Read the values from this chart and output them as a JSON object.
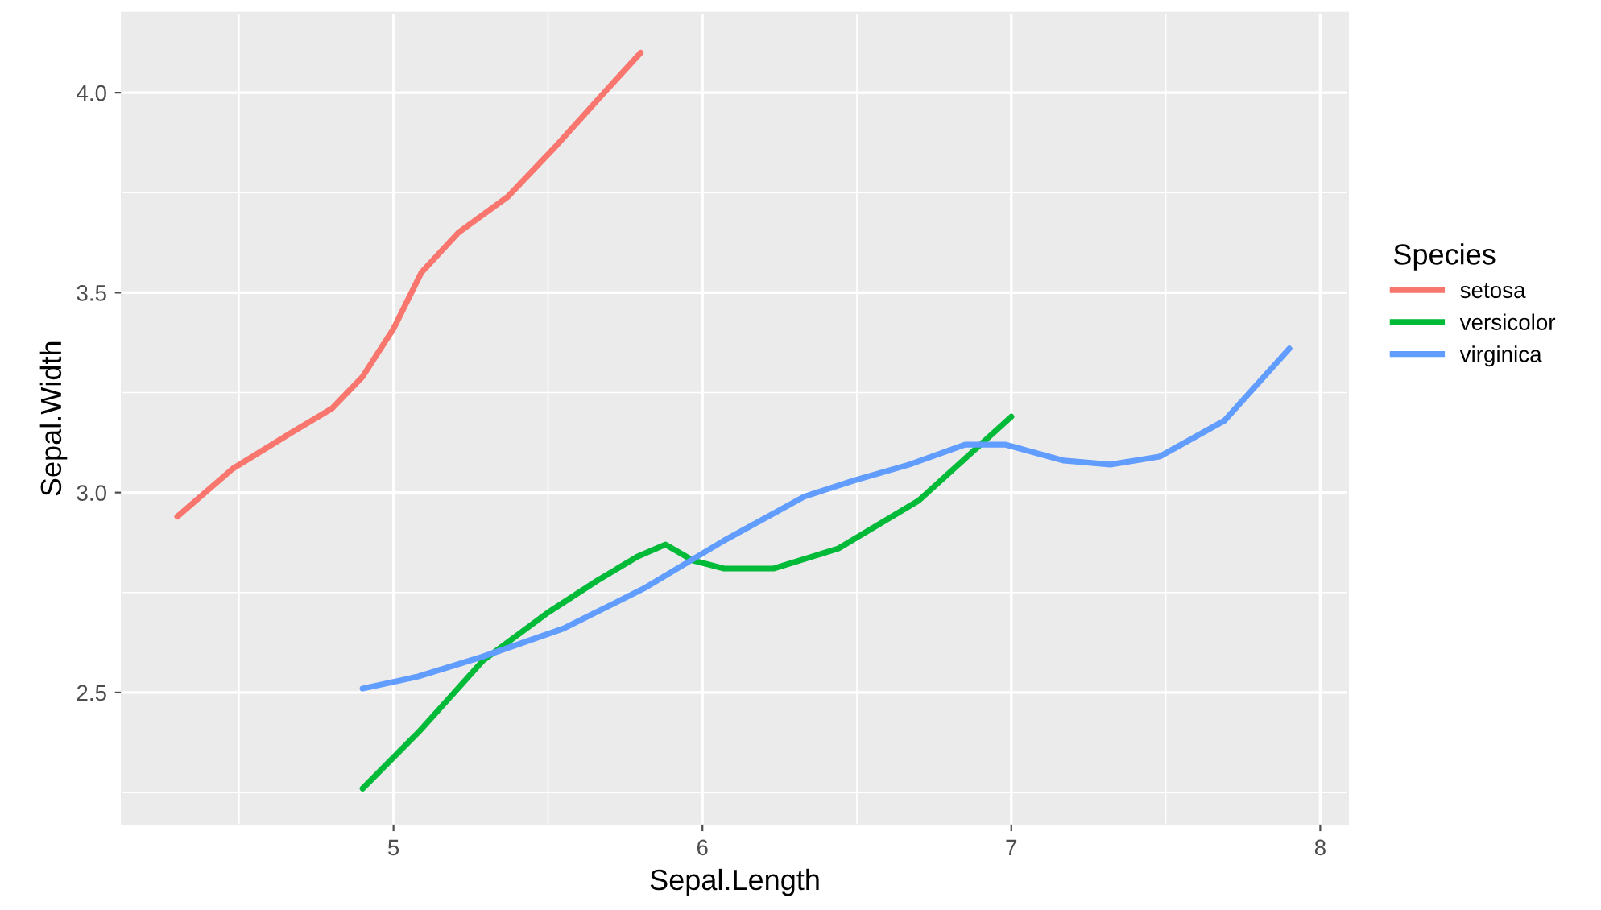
{
  "chart_data": {
    "type": "line",
    "xlabel": "Sepal.Length",
    "ylabel": "Sepal.Width",
    "legend_title": "Species",
    "legend": "right",
    "grid": true,
    "marker": "none",
    "line_style": "solid",
    "xlim": [
      4.12,
      8.09
    ],
    "ylim": [
      2.17,
      4.2
    ],
    "xticks": [
      5,
      6,
      7,
      8
    ],
    "yticks": [
      2.5,
      {
        "value": 3,
        "label": "3.0"
      },
      3.5,
      {
        "value": 4,
        "label": "4.0"
      }
    ],
    "series": [
      {
        "name": "setosa",
        "color": "#f8766d",
        "x": [
          4.3,
          4.48,
          4.67,
          4.8,
          4.9,
          5.0,
          5.09,
          5.21,
          5.37,
          5.53,
          5.67,
          5.8
        ],
        "values": [
          2.94,
          3.06,
          3.15,
          3.21,
          3.29,
          3.41,
          3.55,
          3.65,
          3.74,
          3.87,
          3.99,
          4.1
        ]
      },
      {
        "name": "versicolor",
        "color": "#00ba38",
        "x": [
          4.9,
          5.08,
          5.29,
          5.5,
          5.66,
          5.79,
          5.88,
          5.97,
          6.07,
          6.23,
          6.44,
          6.7,
          7.0
        ],
        "values": [
          2.26,
          2.4,
          2.58,
          2.7,
          2.78,
          2.84,
          2.87,
          2.83,
          2.81,
          2.81,
          2.86,
          2.98,
          3.19
        ]
      },
      {
        "name": "virginica",
        "color": "#619cff",
        "x": [
          4.9,
          5.08,
          5.29,
          5.55,
          5.81,
          6.07,
          6.33,
          6.49,
          6.67,
          6.85,
          6.98,
          7.17,
          7.32,
          7.48,
          7.69,
          7.9
        ],
        "values": [
          2.51,
          2.54,
          2.59,
          2.66,
          2.76,
          2.88,
          2.99,
          3.03,
          3.07,
          3.12,
          3.12,
          3.08,
          3.07,
          3.09,
          3.18,
          3.36
        ]
      }
    ]
  }
}
